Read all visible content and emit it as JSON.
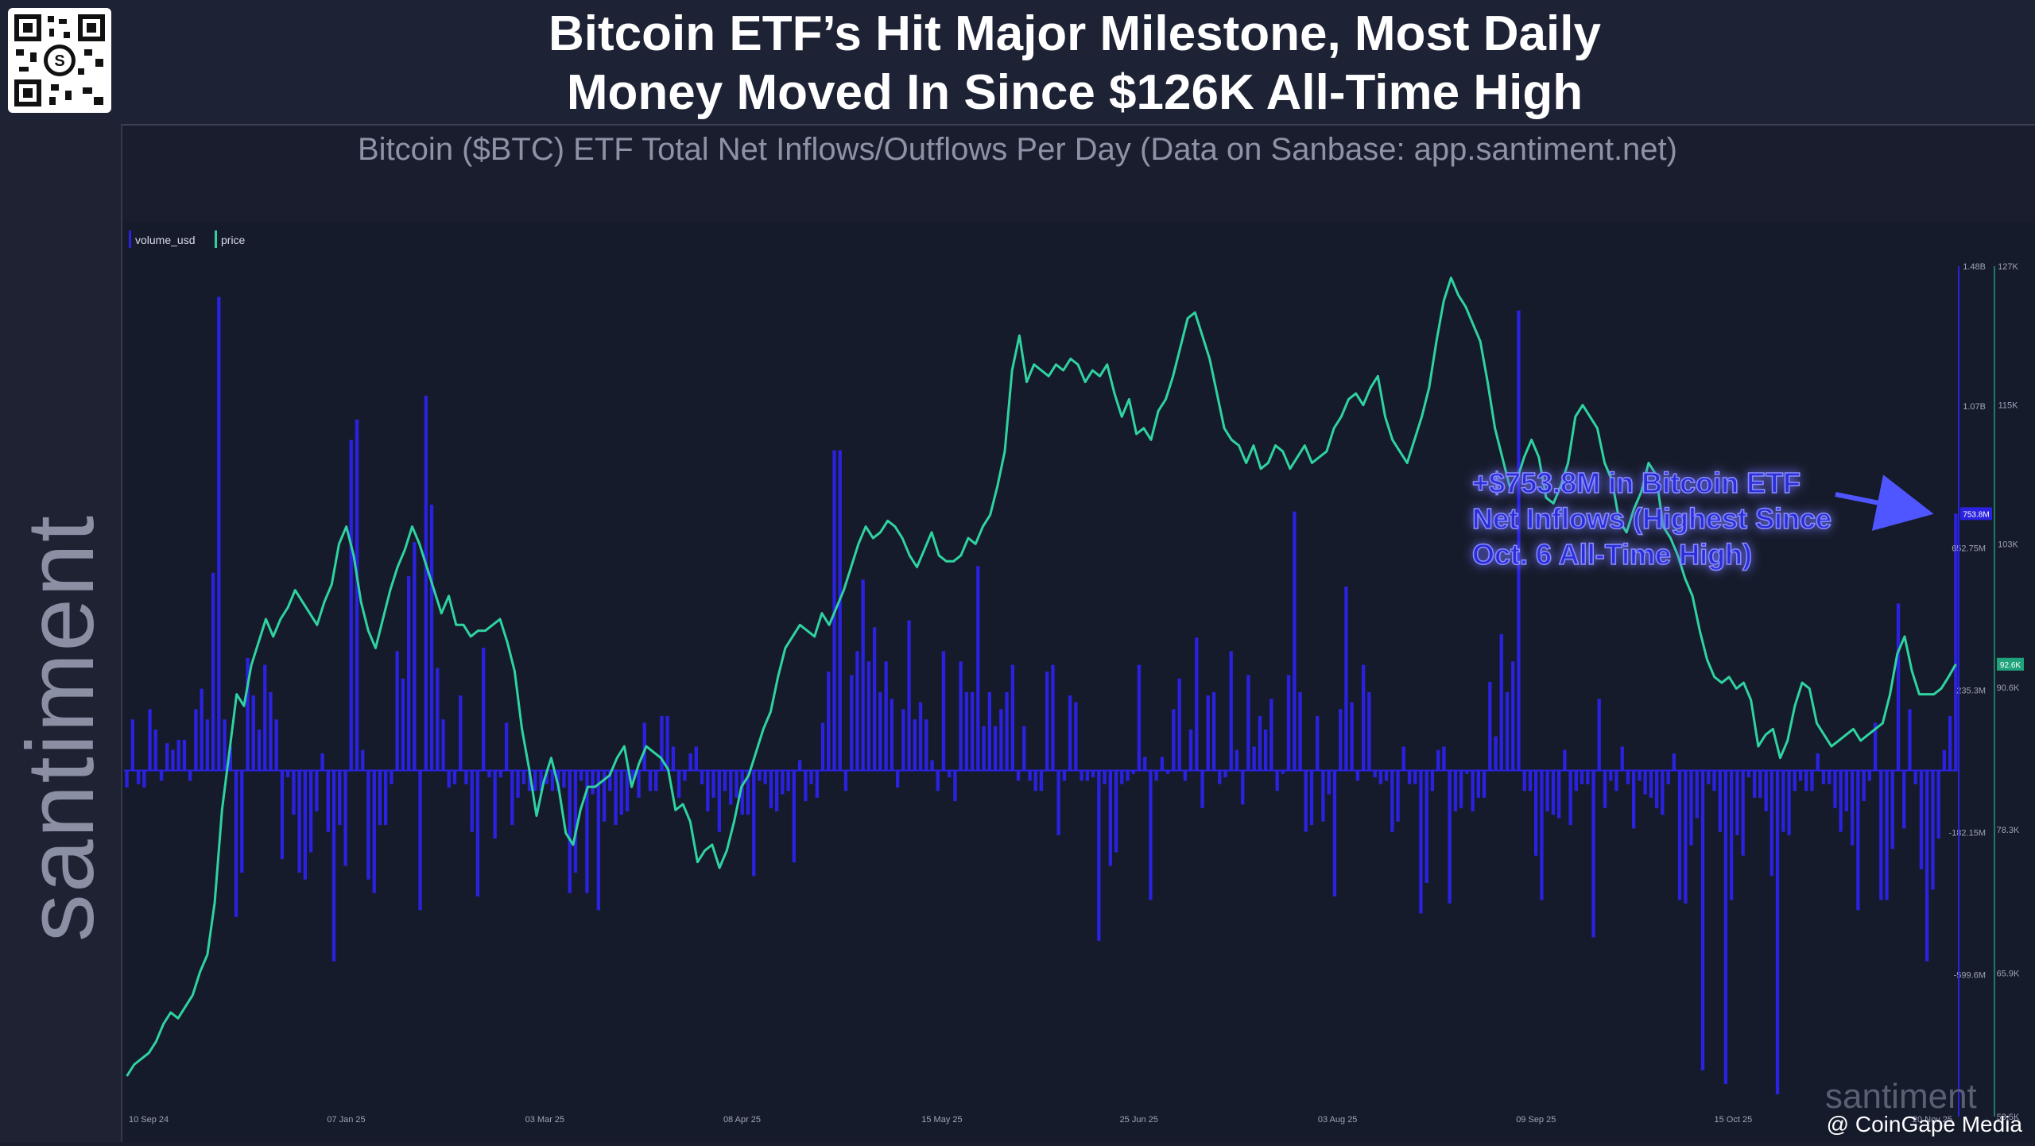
{
  "header": {
    "title_line1": "Bitcoin ETF’s Hit Major Milestone, Most Daily",
    "title_line2": "Money Moved In Since $126K All-Time High",
    "subtitle": "Bitcoin ($BTC) ETF Total Net Inflows/Outflows Per Day (Data on Sanbase: app.santiment.net)"
  },
  "brand": {
    "name": "santiment",
    "watermark": "santiment",
    "credit": "@ CoinGape Media"
  },
  "annotation": {
    "line1": "+$753.8M in Bitcoin ETF",
    "line2": "Net Inflows (Highest Since",
    "line3": "Oct. 6 All-Time High)"
  },
  "colors": {
    "background": "#161b2c",
    "bars": "#2a22e0",
    "price": "#2fd3a0",
    "annotation_glow": "#3a3aff"
  },
  "chart_data": {
    "type": "bar",
    "legend": [
      "volume_usd",
      "price"
    ],
    "legend_position": "top-left",
    "x_tick_labels": [
      "10 Sep 24",
      "07 Jan 25",
      "03 Mar 25",
      "08 Apr 25",
      "15 May 25",
      "25 Jun 25",
      "03 Aug 25",
      "09 Sep 25",
      "15 Oct 25",
      "20 Nov 25"
    ],
    "y_left_ticks": [
      "1.48B",
      "1.07B",
      "652.75M",
      "235.3M",
      "-182.15M",
      "-599.6M"
    ],
    "y_right_ticks": [
      "127K",
      "115K",
      "103K",
      "90.6K",
      "78.3K",
      "65.9K",
      "53.5K"
    ],
    "current_labels": {
      "volume": "753.8M",
      "price": "92.6K"
    },
    "volume_range_usd": [
      -1016000000,
      1480000000
    ],
    "price_range_usd": [
      53500,
      127000
    ],
    "series": [
      {
        "name": "volume_usd",
        "unit": "USD",
        "values": [
          -50000000,
          150000000,
          -40000000,
          -50000000,
          180000000,
          120000000,
          -30000000,
          80000000,
          60000000,
          90000000,
          90000000,
          -30000000,
          180000000,
          240000000,
          150000000,
          580000000,
          1390000000,
          150000000,
          70000000,
          -430000000,
          -300000000,
          330000000,
          220000000,
          120000000,
          310000000,
          230000000,
          150000000,
          -260000000,
          -20000000,
          -130000000,
          -300000000,
          -320000000,
          -240000000,
          -120000000,
          50000000,
          -180000000,
          -560000000,
          -160000000,
          -280000000,
          970000000,
          1030000000,
          60000000,
          -320000000,
          -360000000,
          -160000000,
          -160000000,
          -40000000,
          350000000,
          270000000,
          570000000,
          670000000,
          -410000000,
          1100000000,
          780000000,
          300000000,
          150000000,
          -50000000,
          -40000000,
          220000000,
          -40000000,
          -180000000,
          -370000000,
          360000000,
          -20000000,
          -200000000,
          -20000000,
          140000000,
          -160000000,
          -80000000,
          -40000000,
          -60000000,
          -60000000,
          -60000000,
          -40000000,
          -60000000,
          -60000000,
          -50000000,
          -360000000,
          -300000000,
          -30000000,
          -360000000,
          -70000000,
          -410000000,
          -150000000,
          -60000000,
          -160000000,
          -130000000,
          -120000000,
          -30000000,
          -80000000,
          140000000,
          -60000000,
          -60000000,
          160000000,
          160000000,
          70000000,
          -80000000,
          -30000000,
          50000000,
          70000000,
          -40000000,
          -120000000,
          -80000000,
          -180000000,
          -60000000,
          -100000000,
          -80000000,
          -130000000,
          -130000000,
          -310000000,
          -30000000,
          -40000000,
          -110000000,
          -120000000,
          -70000000,
          -60000000,
          -270000000,
          30000000,
          -90000000,
          -40000000,
          -80000000,
          140000000,
          290000000,
          940000000,
          940000000,
          -60000000,
          280000000,
          350000000,
          560000000,
          320000000,
          420000000,
          230000000,
          320000000,
          210000000,
          -50000000,
          180000000,
          440000000,
          150000000,
          200000000,
          150000000,
          30000000,
          -60000000,
          350000000,
          -20000000,
          -90000000,
          320000000,
          230000000,
          230000000,
          600000000,
          130000000,
          230000000,
          130000000,
          180000000,
          230000000,
          310000000,
          -30000000,
          130000000,
          -30000000,
          -60000000,
          -60000000,
          290000000,
          310000000,
          -190000000,
          -30000000,
          220000000,
          200000000,
          -30000000,
          -30000000,
          -20000000,
          -500000000,
          -40000000,
          -280000000,
          -240000000,
          -40000000,
          -30000000,
          -10000000,
          310000000,
          40000000,
          -380000000,
          -30000000,
          40000000,
          -10000000,
          180000000,
          270000000,
          -30000000,
          120000000,
          390000000,
          -110000000,
          220000000,
          230000000,
          -40000000,
          -20000000,
          350000000,
          60000000,
          -100000000,
          280000000,
          70000000,
          160000000,
          120000000,
          210000000,
          -60000000,
          -10000000,
          280000000,
          760000000,
          230000000,
          -180000000,
          -160000000,
          160000000,
          -150000000,
          -70000000,
          -370000000,
          180000000,
          540000000,
          200000000,
          -30000000,
          310000000,
          230000000,
          -20000000,
          -40000000,
          -30000000,
          -180000000,
          -150000000,
          70000000,
          -40000000,
          -40000000,
          -420000000,
          -330000000,
          -60000000,
          60000000,
          70000000,
          -390000000,
          -120000000,
          -110000000,
          -10000000,
          -120000000,
          -80000000,
          -80000000,
          260000000,
          100000000,
          400000000,
          230000000,
          320000000,
          1350000000,
          -60000000,
          -60000000,
          -250000000,
          -380000000,
          -120000000,
          -130000000,
          -140000000,
          60000000,
          -160000000,
          -60000000,
          -40000000,
          -40000000,
          -490000000,
          210000000,
          -110000000,
          -30000000,
          -60000000,
          70000000,
          -40000000,
          -170000000,
          -30000000,
          -70000000,
          -80000000,
          -110000000,
          -130000000,
          -40000000,
          50000000,
          -380000000,
          -390000000,
          -220000000,
          -140000000,
          -880000000,
          -40000000,
          -60000000,
          -180000000,
          -920000000,
          -380000000,
          -190000000,
          -250000000,
          -20000000,
          -80000000,
          -80000000,
          -120000000,
          -310000000,
          -950000000,
          -180000000,
          -190000000,
          -60000000,
          -30000000,
          -60000000,
          -60000000,
          50000000,
          -40000000,
          -40000000,
          -110000000,
          -180000000,
          -120000000,
          -220000000,
          -410000000,
          -90000000,
          -30000000,
          140000000,
          -380000000,
          -380000000,
          -230000000,
          490000000,
          -170000000,
          180000000,
          -40000000,
          -290000000,
          -560000000,
          -350000000,
          -200000000,
          60000000,
          160000000,
          753800000
        ]
      },
      {
        "name": "price",
        "unit": "USD",
        "values": [
          57000,
          58000,
          58500,
          59000,
          60000,
          61500,
          62500,
          62000,
          63000,
          64000,
          66000,
          67500,
          72000,
          80000,
          85000,
          90000,
          89000,
          92500,
          94500,
          96500,
          95000,
          96500,
          97500,
          99000,
          98000,
          97000,
          96000,
          98000,
          99500,
          103000,
          104500,
          102000,
          98000,
          95500,
          94000,
          96500,
          99000,
          101000,
          102500,
          104500,
          103000,
          101000,
          99000,
          97000,
          98500,
          96000,
          96000,
          95000,
          95500,
          95500,
          96000,
          96500,
          94500,
          92000,
          87000,
          83500,
          79500,
          82500,
          84500,
          82000,
          78000,
          77000,
          80000,
          82000,
          82000,
          82500,
          83000,
          84500,
          85500,
          82000,
          84000,
          85500,
          85000,
          84500,
          83500,
          80000,
          80500,
          79000,
          75500,
          76500,
          77000,
          75000,
          76500,
          79000,
          82000,
          83000,
          85000,
          87000,
          88500,
          91500,
          94000,
          95000,
          96000,
          95500,
          95000,
          97000,
          96000,
          97500,
          99000,
          101000,
          103000,
          104500,
          103500,
          104000,
          105000,
          104500,
          103500,
          102000,
          101000,
          102500,
          104000,
          102000,
          101500,
          101500,
          102000,
          103500,
          103000,
          104500,
          105500,
          108000,
          111000,
          118000,
          121000,
          117000,
          118500,
          118000,
          117500,
          118500,
          118000,
          119000,
          118500,
          117000,
          118000,
          117500,
          118500,
          116000,
          114000,
          115500,
          112500,
          113000,
          112000,
          114500,
          115500,
          117500,
          120000,
          122500,
          123000,
          121000,
          119000,
          116000,
          113000,
          112000,
          111500,
          110000,
          111500,
          109500,
          110000,
          111500,
          111000,
          109500,
          110500,
          111500,
          110000,
          110500,
          111000,
          113000,
          114000,
          115500,
          116000,
          115000,
          116500,
          117500,
          114000,
          112000,
          111000,
          110000,
          112000,
          114000,
          116500,
          120500,
          124000,
          126000,
          124500,
          123500,
          122000,
          120500,
          117000,
          113000,
          110500,
          108000,
          108500,
          110500,
          112000,
          110500,
          107000,
          106500,
          108000,
          110000,
          114000,
          115000,
          114000,
          113000,
          110000,
          108500,
          105000,
          104000,
          106000,
          107500,
          110000,
          109000,
          104500,
          103500,
          102000,
          100000,
          98500,
          95500,
          93000,
          91500,
          91000,
          91500,
          90500,
          91000,
          89500,
          85500,
          86500,
          87000,
          84500,
          86000,
          89000,
          91000,
          90500,
          87500,
          86500,
          85500,
          86000,
          86500,
          87000,
          86000,
          86500,
          87000,
          87500,
          90000,
          93500,
          95000,
          92000,
          90000,
          90000,
          90000,
          90500,
          91500,
          92600
        ]
      }
    ]
  }
}
